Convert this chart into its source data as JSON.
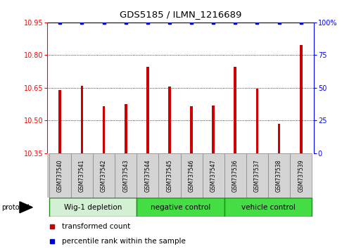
{
  "title": "GDS5185 / ILMN_1216689",
  "samples": [
    "GSM737540",
    "GSM737541",
    "GSM737542",
    "GSM737543",
    "GSM737544",
    "GSM737545",
    "GSM737546",
    "GSM737547",
    "GSM737536",
    "GSM737537",
    "GSM737538",
    "GSM737539"
  ],
  "red_values": [
    10.64,
    10.66,
    10.565,
    10.575,
    10.745,
    10.655,
    10.565,
    10.57,
    10.745,
    10.645,
    10.485,
    10.845
  ],
  "blue_values": [
    100,
    100,
    100,
    100,
    100,
    100,
    100,
    100,
    100,
    100,
    100,
    100
  ],
  "ylim_left": [
    10.35,
    10.95
  ],
  "ylim_right": [
    0,
    100
  ],
  "yticks_left": [
    10.35,
    10.5,
    10.65,
    10.8,
    10.95
  ],
  "yticks_right": [
    0,
    25,
    50,
    75,
    100
  ],
  "ytick_labels_right": [
    "0",
    "25",
    "50",
    "75",
    "100%"
  ],
  "group_colors": [
    "#d4f0d4",
    "#44dd44",
    "#44dd44"
  ],
  "group_labels": [
    "Wig-1 depletion",
    "negative control",
    "vehicle control"
  ],
  "group_starts": [
    0,
    4,
    8
  ],
  "group_ends": [
    3,
    7,
    11
  ],
  "group_border_color": "#228B22",
  "bar_color": "#cc0000",
  "blue_marker_color": "#0000cc",
  "baseline": 10.35,
  "bar_width": 0.12,
  "legend_red_label": "transformed count",
  "legend_blue_label": "percentile rank within the sample",
  "protocol_label": "protocol"
}
